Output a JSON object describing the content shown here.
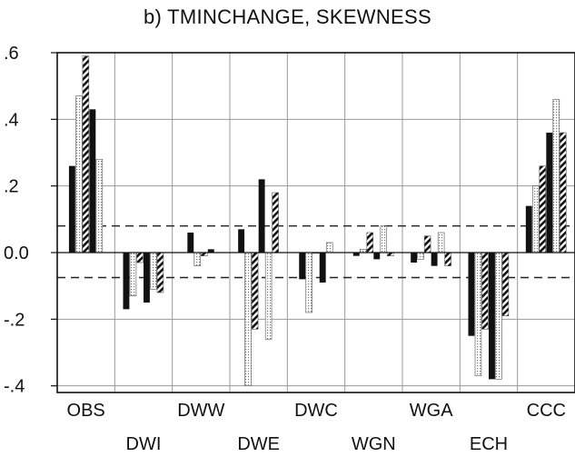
{
  "chart_data": {
    "type": "bar",
    "title": "b) TMINCHANGE, SKEWNESS",
    "xlabel": "",
    "ylabel": "",
    "ylim": [
      -0.42,
      0.6
    ],
    "yticks": [
      {
        "value": 0.6,
        "label": ".6"
      },
      {
        "value": 0.4,
        "label": ".4"
      },
      {
        "value": 0.2,
        "label": ".2"
      },
      {
        "value": 0.0,
        "label": "0.0"
      },
      {
        "value": -0.2,
        "label": "-.2"
      },
      {
        "value": -0.4,
        "label": "-.4"
      }
    ],
    "grid": true,
    "legend": "none",
    "reference_lines": [
      0.08,
      -0.075
    ],
    "categories": [
      "OBS",
      "DWI",
      "DWW",
      "DWE",
      "DWC",
      "WGN",
      "WGA",
      "ECH",
      "CCC"
    ],
    "category_label_rows": [
      0,
      1,
      0,
      1,
      0,
      1,
      0,
      1,
      0
    ],
    "bar_styles": [
      "solid",
      "dotted",
      "hatched",
      "solid",
      "dotted",
      "hatched",
      "dotted"
    ],
    "values": [
      [
        0.26,
        0.47,
        0.59,
        0.43,
        0.28
      ],
      [
        -0.17,
        -0.13,
        -0.03,
        -0.15,
        -0.11,
        -0.12
      ],
      [
        0.06,
        -0.04,
        -0.01,
        0.01
      ],
      [
        0.07,
        -0.4,
        -0.23,
        0.22,
        -0.26,
        0.18
      ],
      [
        -0.08,
        -0.18,
        0.0,
        -0.09,
        0.03
      ],
      [
        -0.01,
        0.01,
        0.06,
        -0.02,
        0.08,
        -0.01
      ],
      [
        -0.03,
        -0.02,
        0.05,
        -0.04,
        0.06,
        -0.04
      ],
      [
        -0.25,
        -0.37,
        -0.23,
        -0.38,
        -0.38,
        -0.19
      ],
      [
        0.14,
        0.2,
        0.26,
        0.36,
        0.46,
        0.36
      ]
    ]
  }
}
